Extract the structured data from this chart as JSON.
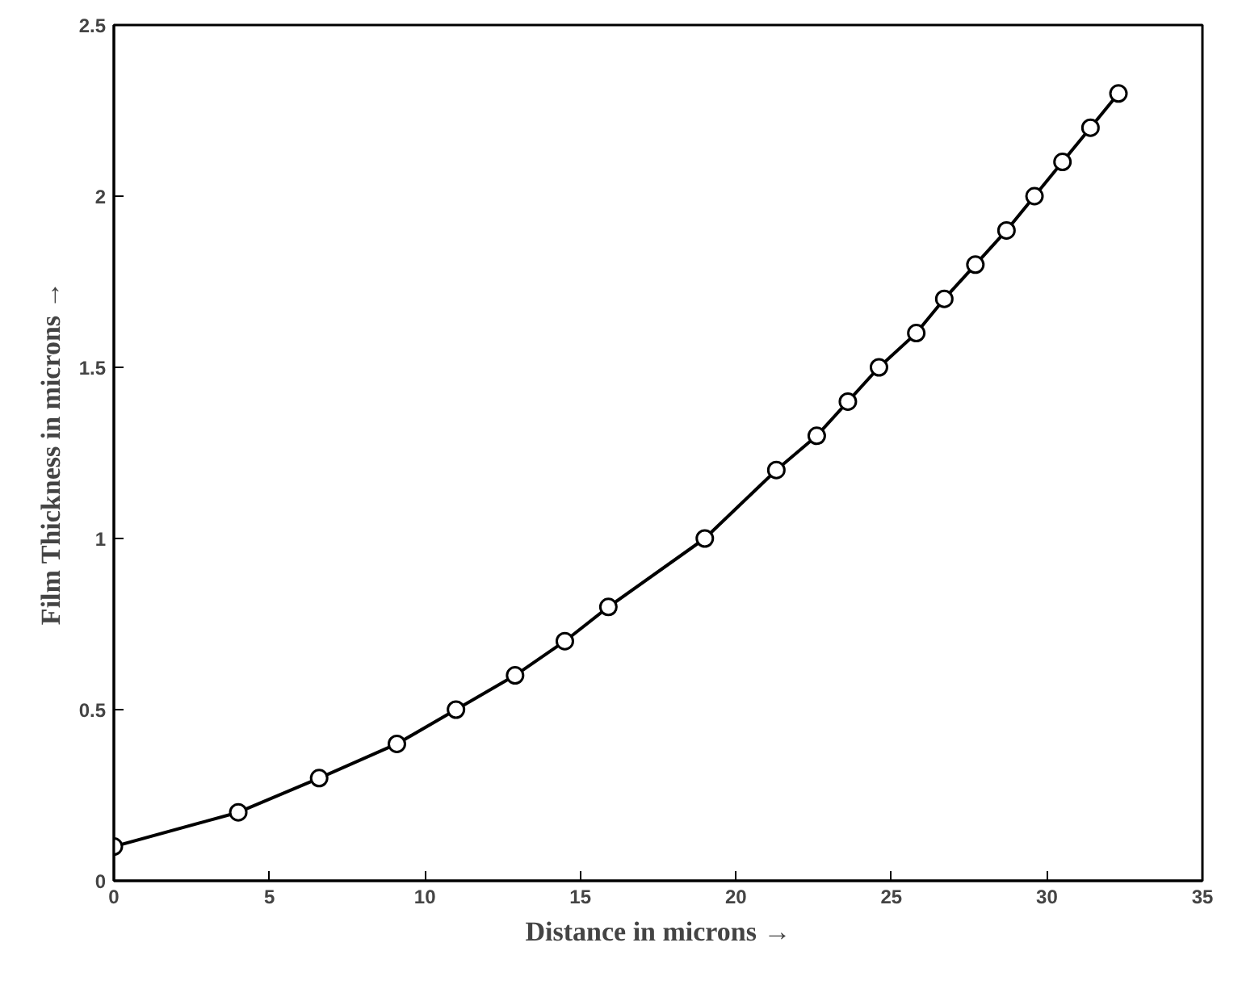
{
  "chart_data": {
    "type": "line",
    "xlabel": "Distance in microns →",
    "ylabel": "Film Thickness in microns →",
    "x": [
      0,
      4.0,
      6.6,
      9.1,
      11.0,
      12.9,
      14.5,
      15.9,
      19.0,
      21.3,
      22.6,
      23.6,
      24.6,
      25.8,
      26.7,
      27.7,
      28.7,
      29.6,
      30.5,
      31.4,
      32.3
    ],
    "series": [
      {
        "color": "#000000",
        "values": [
          0.1,
          0.2,
          0.3,
          0.4,
          0.5,
          0.6,
          0.7,
          0.8,
          1.0,
          1.2,
          1.3,
          1.4,
          1.5,
          1.6,
          1.7,
          1.8,
          1.9,
          2.0,
          2.1,
          2.2,
          2.3
        ]
      }
    ],
    "xlim": [
      0,
      35
    ],
    "ylim": [
      0,
      2.5
    ],
    "xticks": [
      0,
      5,
      10,
      15,
      20,
      25,
      30,
      35
    ],
    "yticks": [
      0,
      {
        "value": 0.5,
        "label": "0.5"
      },
      1,
      {
        "value": 1.5,
        "label": "1.5"
      },
      2,
      {
        "value": 2.5,
        "label": "2.5"
      }
    ],
    "marker": "circle",
    "line_style": "solid",
    "grid": false
  }
}
